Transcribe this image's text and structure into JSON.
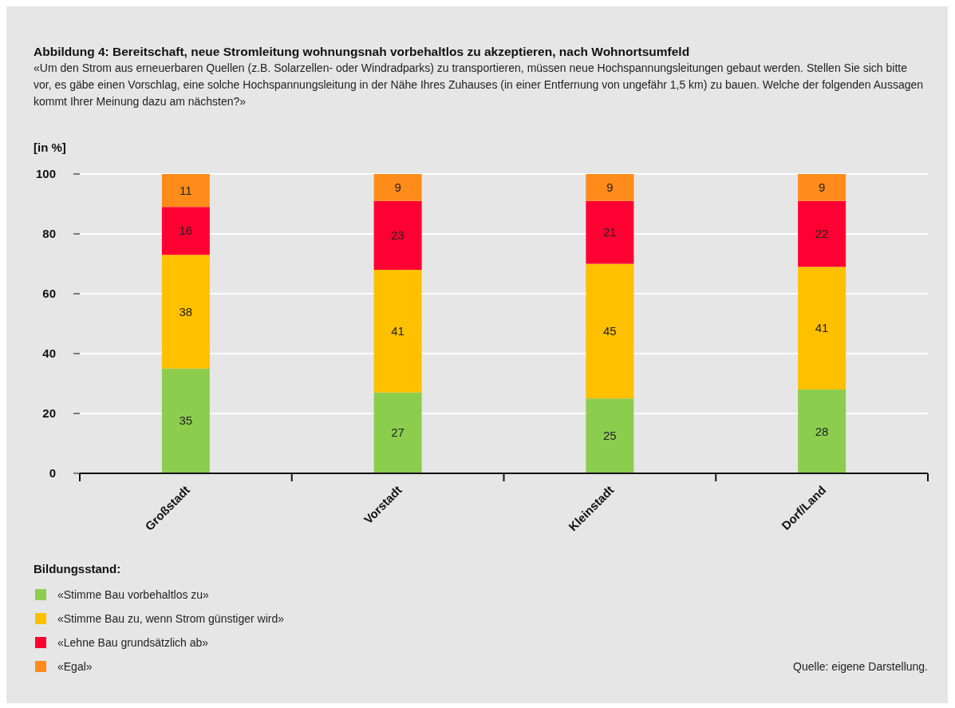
{
  "chart_data": {
    "type": "bar",
    "stacked": true,
    "title": "Abbildung 4: Bereitschaft, neue Stromleitung wohnungsnah vorbehaltlos zu akzeptieren, nach Wohnortsumfeld",
    "subtitle": "«Um den Strom aus erneuerbaren Quellen (z.B. Solarzellen- oder Windradparks) zu transportieren, müssen neue Hochspannungsleitungen gebaut werden. Stellen Sie sich bitte vor, es gäbe einen Vorschlag, eine solche Hochspannungsleitung in der Nähe Ihres Zuhauses (in einer Entfernung von ungefähr 1,5 km) zu bauen. Welche der folgenden Aussagen kommt Ihrer Meinung dazu am nächsten?»",
    "ylabel": "[in %]",
    "legend_title": "Bildungsstand:",
    "annotations": [
      "Quelle: eigene Darstellung."
    ],
    "categories": [
      "Großstadt",
      "Vorstadt",
      "Kleinstadt",
      "Dorf/Land"
    ],
    "series": [
      {
        "name": "«Stimme Bau vorbehaltlos zu»",
        "color": "#8ccd4e",
        "values": [
          35,
          27,
          25,
          28
        ]
      },
      {
        "name": "«Stimme Bau zu, wenn Strom günstiger wird»",
        "color": "#ffc000",
        "values": [
          38,
          41,
          45,
          41
        ]
      },
      {
        "name": "«Lehne Bau grundsätzlich ab»",
        "color": "#ff0033",
        "values": [
          16,
          23,
          21,
          22
        ]
      },
      {
        "name": "«Egal»",
        "color": "#ff8c1a",
        "values": [
          11,
          9,
          9,
          9
        ]
      }
    ],
    "ylim": [
      0,
      100
    ],
    "yticks": [
      0,
      20,
      40,
      60,
      80,
      100
    ],
    "grid": "y",
    "legend": "bottom",
    "data_labels": true
  }
}
